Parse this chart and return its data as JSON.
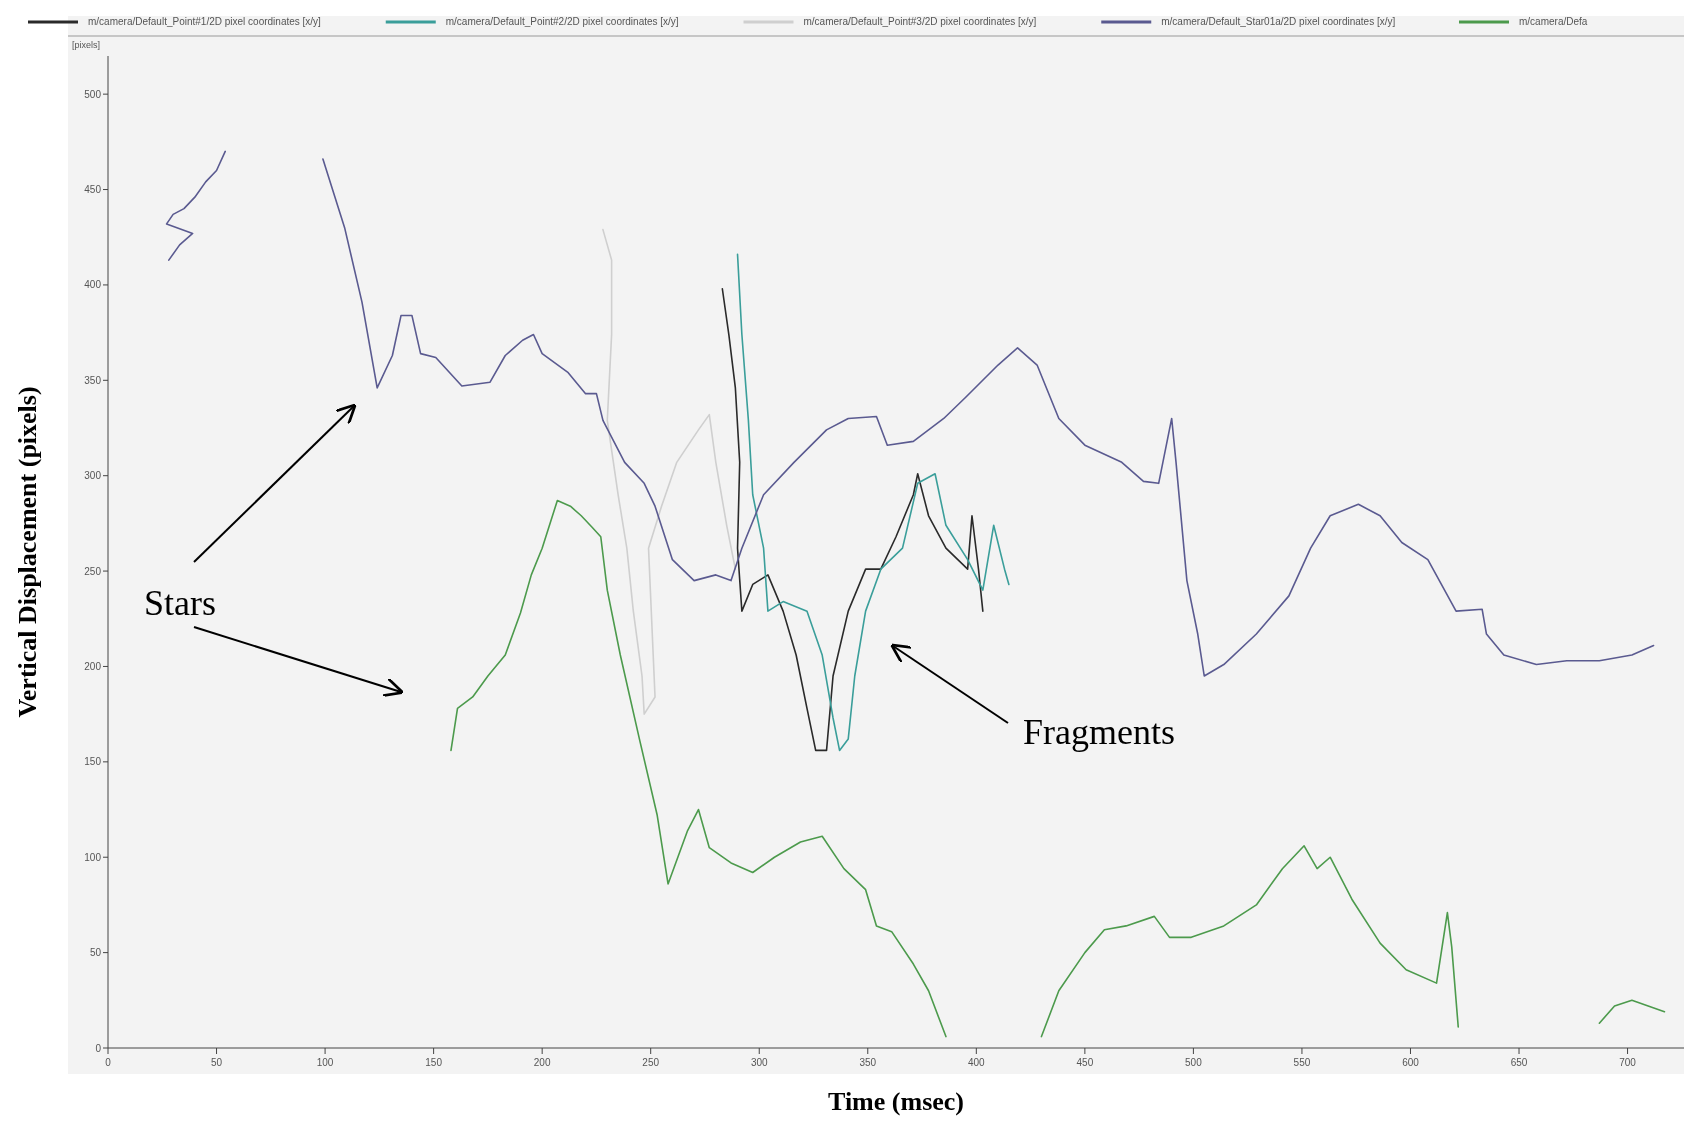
{
  "chart_data": {
    "type": "line",
    "xlabel": "Time (msec)",
    "ylabel": "Vertical Displacement (pixels)",
    "xlim": [
      0,
      726
    ],
    "ylim": [
      0,
      520
    ],
    "xticks": [
      0,
      50,
      100,
      150,
      200,
      250,
      300,
      350,
      400,
      450,
      500,
      550,
      600,
      650,
      700
    ],
    "yticks": [
      0,
      50,
      100,
      150,
      200,
      250,
      300,
      350,
      400,
      450,
      500
    ],
    "grid": false,
    "legend": "top",
    "marker": "none",
    "line_style": "solid",
    "annotations": [
      "[pixels]",
      "Stars",
      "Fragments"
    ],
    "series": [
      {
        "name": "m/camera/Default_Point#1/2D pixel coordinates [x/y]",
        "color": "#2a2a2a",
        "x": [
          283,
          286,
          289,
          291,
          290,
          292,
          297,
          304,
          311,
          317,
          322,
          326,
          331,
          334,
          341,
          349,
          356,
          363,
          371,
          373,
          378,
          386,
          396,
          398,
          401,
          403
        ],
        "values": [
          398,
          374,
          346,
          307,
          262,
          229,
          243,
          248,
          229,
          206,
          178,
          156,
          156,
          195,
          229,
          251,
          251,
          268,
          290,
          301,
          279,
          262,
          251,
          279,
          251,
          229
        ]
      },
      {
        "name": "m/camera/Default_Point#2/2D pixel coordinates [x/y]",
        "color": "#3a9e9a",
        "x": [
          290,
          292,
          295,
          297,
          302,
          304,
          311,
          322,
          329,
          334,
          337,
          341,
          344,
          349,
          356,
          366,
          373,
          381,
          386,
          396,
          403,
          408,
          413,
          415
        ],
        "values": [
          416,
          374,
          329,
          290,
          262,
          229,
          234,
          229,
          206,
          173,
          156,
          162,
          195,
          229,
          251,
          262,
          296,
          301,
          274,
          256,
          240,
          274,
          251,
          243
        ]
      },
      {
        "name": "m/camera/Default_Point#3/2D pixel coordinates [x/y]",
        "color": "#cfcfcf",
        "x": [
          228,
          232,
          232,
          230,
          235,
          239,
          242,
          246,
          247,
          252,
          249,
          255,
          262,
          272,
          277,
          280,
          285,
          289
        ],
        "values": [
          429,
          413,
          374,
          329,
          290,
          262,
          229,
          195,
          175,
          184,
          262,
          284,
          307,
          324,
          332,
          307,
          274,
          251
        ]
      },
      {
        "name": "m/camera/Default_Star01a/2D pixel coordinates [x/y]",
        "color": "#5a5a90",
        "x": [
          28,
          33,
          39,
          27,
          30,
          35,
          40,
          45,
          50,
          54,
          60,
          99,
          109,
          117,
          124,
          131,
          135,
          140,
          144,
          151,
          163,
          176,
          183,
          191,
          196,
          200,
          212,
          220,
          225,
          228,
          233,
          238,
          247,
          252,
          260,
          270,
          280,
          287,
          292,
          302,
          316,
          331,
          341,
          354,
          359,
          371,
          385,
          395,
          410,
          419,
          428,
          438,
          450,
          467,
          477,
          484,
          490,
          492,
          497,
          502,
          505,
          514,
          529,
          544,
          554,
          563,
          576,
          586,
          596,
          608,
          621,
          633,
          635,
          643,
          658,
          672,
          687,
          702,
          712
        ],
        "values": [
          413,
          421,
          427,
          432,
          437,
          440,
          446,
          454,
          460,
          470,
          null,
          466,
          430,
          391,
          346,
          363,
          384,
          384,
          364,
          362,
          347,
          349,
          363,
          371,
          374,
          364,
          354,
          343,
          343,
          329,
          318,
          307,
          296,
          284,
          256,
          245,
          248,
          245,
          262,
          290,
          307,
          324,
          330,
          331,
          316,
          318,
          330,
          341,
          358,
          367,
          358,
          330,
          316,
          307,
          297,
          296,
          330,
          307,
          245,
          217,
          195,
          201,
          217,
          237,
          262,
          279,
          285,
          279,
          265,
          256,
          229,
          230,
          217,
          206,
          201,
          203,
          203,
          206,
          211
        ]
      },
      {
        "name": "m/camera/Defa",
        "color": "#4c9a4c",
        "x": [
          158,
          161,
          168,
          175,
          183,
          190,
          195,
          200,
          207,
          213,
          218,
          223,
          227,
          230,
          236,
          245,
          253,
          258,
          267,
          272,
          277,
          287,
          297,
          307,
          319,
          329,
          339,
          349,
          354,
          361,
          371,
          378,
          386,
          400,
          430,
          438,
          450,
          459,
          469,
          482,
          489,
          499,
          514,
          529,
          541,
          551,
          557,
          563,
          573,
          586,
          598,
          612,
          617,
          619,
          622,
          650,
          687,
          694,
          702,
          717
        ],
        "values": [
          156,
          178,
          184,
          195,
          206,
          228,
          248,
          262,
          287,
          284,
          279,
          273,
          268,
          240,
          206,
          161,
          122,
          86,
          114,
          125,
          105,
          97,
          92,
          100,
          108,
          111,
          94,
          83,
          64,
          61,
          44,
          30,
          6,
          null,
          6,
          30,
          50,
          62,
          64,
          69,
          58,
          58,
          64,
          75,
          94,
          106,
          94,
          100,
          78,
          55,
          41,
          34,
          71,
          53,
          11,
          null,
          13,
          22,
          25,
          19
        ]
      }
    ]
  }
}
